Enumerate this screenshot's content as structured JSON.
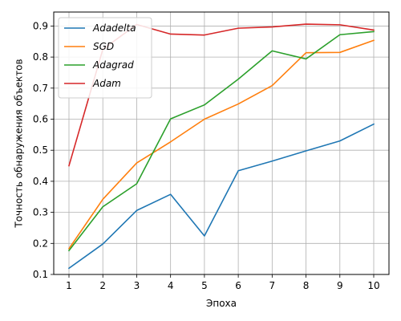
{
  "chart_data": {
    "type": "line",
    "title": "",
    "xlabel": "Эпоха",
    "ylabel": "Точность обнаружения объектов",
    "x": [
      1,
      2,
      3,
      4,
      5,
      6,
      7,
      8,
      9,
      10
    ],
    "xlim": [
      0.55,
      10.45
    ],
    "ylim": [
      0.1,
      0.945
    ],
    "x_ticks": [
      "1",
      "2",
      "3",
      "4",
      "5",
      "6",
      "7",
      "8",
      "9",
      "10"
    ],
    "y_ticks": [
      "0.1",
      "0.2",
      "0.3",
      "0.4",
      "0.5",
      "0.6",
      "0.7",
      "0.8",
      "0.9"
    ],
    "grid": true,
    "legend_position": "top-left",
    "series": [
      {
        "name": "Adadelta",
        "color": "#1f77b4",
        "values": [
          0.12,
          0.198,
          0.306,
          0.358,
          0.224,
          0.434,
          0.465,
          0.498,
          0.53,
          0.584
        ]
      },
      {
        "name": "SGD",
        "color": "#ff7f0e",
        "values": [
          0.183,
          0.342,
          0.459,
          0.527,
          0.6,
          0.649,
          0.708,
          0.814,
          0.815,
          0.854
        ]
      },
      {
        "name": "Adagrad",
        "color": "#2ca02c",
        "values": [
          0.177,
          0.318,
          0.392,
          0.601,
          0.646,
          0.729,
          0.82,
          0.794,
          0.872,
          0.882
        ]
      },
      {
        "name": "Adam",
        "color": "#d62728",
        "values": [
          0.45,
          0.825,
          0.905,
          0.874,
          0.871,
          0.893,
          0.897,
          0.906,
          0.904,
          0.887
        ]
      }
    ]
  }
}
